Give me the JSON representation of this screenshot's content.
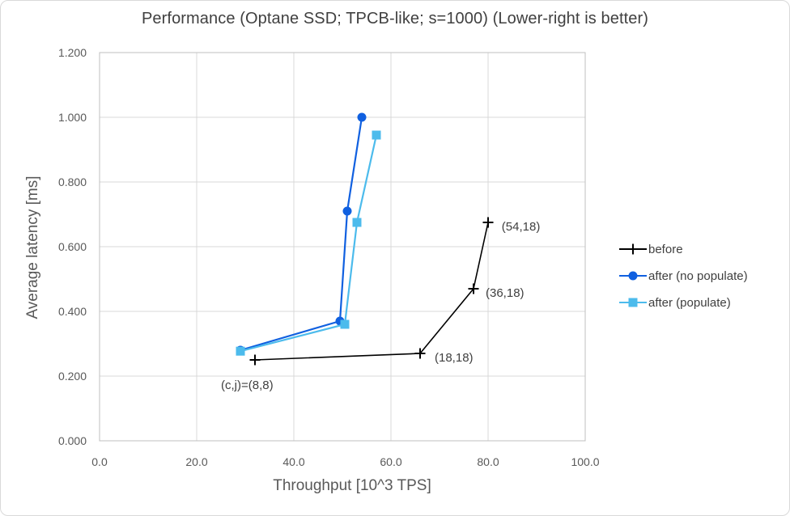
{
  "title": "Performance (Optane SSD; TPCB-like; s=1000) (Lower-right is better)",
  "colors": {
    "before": "#000000",
    "after_no_populate": "#1060e0",
    "after_populate": "#4cbbec",
    "grid": "#d9d9d9",
    "plot_border": "#bfbfbf",
    "title_text": "#404040",
    "axis_text": "#595959",
    "annotation_text": "#404040"
  },
  "chart_data": {
    "type": "line",
    "title": "Performance (Optane SSD; TPCB-like; s=1000) (Lower-right is better)",
    "xlabel": "Throughput [10^3 TPS]",
    "ylabel": "Average latency [ms]",
    "xlim": [
      0,
      100
    ],
    "ylim": [
      0,
      1.2
    ],
    "x_ticks": [
      "0.0",
      "20.0",
      "40.0",
      "60.0",
      "80.0",
      "100.0"
    ],
    "y_ticks": [
      "0.000",
      "0.200",
      "0.400",
      "0.600",
      "0.800",
      "1.000",
      "1.200"
    ],
    "grid": true,
    "legend_position": "right",
    "series": [
      {
        "name": "before",
        "marker": "plus",
        "color": "#000000",
        "points": [
          [
            32,
            0.25
          ],
          [
            66,
            0.27
          ],
          [
            77,
            0.47
          ],
          [
            80,
            0.675
          ]
        ]
      },
      {
        "name": "after (no populate)",
        "marker": "circle",
        "color": "#1060e0",
        "points": [
          [
            29,
            0.28
          ],
          [
            49.5,
            0.37
          ],
          [
            51,
            0.71
          ],
          [
            54,
            1.0
          ]
        ]
      },
      {
        "name": "after (populate)",
        "marker": "square",
        "color": "#4cbbec",
        "points": [
          [
            29,
            0.277
          ],
          [
            50.5,
            0.36
          ],
          [
            53,
            0.675
          ],
          [
            57,
            0.945
          ]
        ]
      }
    ],
    "annotations": [
      {
        "text": "(c,j)=(8,8)",
        "x": 25,
        "y": 0.172
      },
      {
        "text": "(18,18)",
        "x": 69,
        "y": 0.258
      },
      {
        "text": "(36,18)",
        "x": 79.5,
        "y": 0.458
      },
      {
        "text": "(54,18)",
        "x": 82.8,
        "y": 0.663
      }
    ]
  }
}
